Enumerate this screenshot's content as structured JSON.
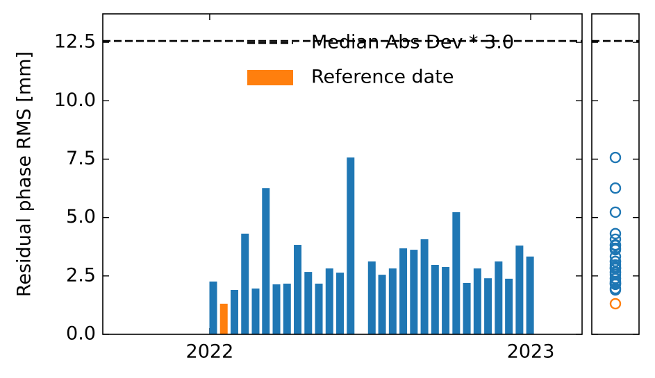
{
  "chart_data": {
    "type": "bar",
    "y_label": "Residual phase RMS [mm]",
    "x": [
      2022.011,
      2022.044,
      2022.077,
      2022.11,
      2022.143,
      2022.175,
      2022.208,
      2022.241,
      2022.274,
      2022.307,
      2022.34,
      2022.373,
      2022.406,
      2022.439,
      2022.505,
      2022.537,
      2022.57,
      2022.603,
      2022.636,
      2022.669,
      2022.702,
      2022.735,
      2022.768,
      2022.801,
      2022.834,
      2022.867,
      2022.9,
      2022.932,
      2022.965,
      2022.998
    ],
    "values": [
      2.26,
      1.31,
      1.9,
      4.31,
      1.96,
      6.26,
      2.14,
      2.17,
      3.83,
      2.67,
      2.17,
      2.82,
      2.64,
      7.57,
      3.12,
      2.55,
      2.82,
      3.68,
      3.62,
      4.07,
      2.97,
      2.88,
      5.23,
      2.2,
      2.82,
      2.4,
      3.12,
      2.38,
      3.8,
      3.33
    ],
    "color": "#1f77b4",
    "reference": {
      "name": "Reference date",
      "index": 1,
      "color": "#ff7f0e"
    },
    "threshold": {
      "name": "Median Abs Dev * 3.0",
      "value": 12.56,
      "color": "#000000"
    },
    "xlim": [
      2021.667,
      2023.16
    ],
    "xticks": [
      2022,
      2023
    ],
    "ylim": [
      0,
      13.72
    ],
    "yticks": [
      {
        "value": 0,
        "label": "0.0"
      },
      2.5,
      {
        "value": 5,
        "label": "5.0"
      },
      7.5,
      {
        "value": 10,
        "label": "10.0"
      },
      12.5
    ]
  }
}
